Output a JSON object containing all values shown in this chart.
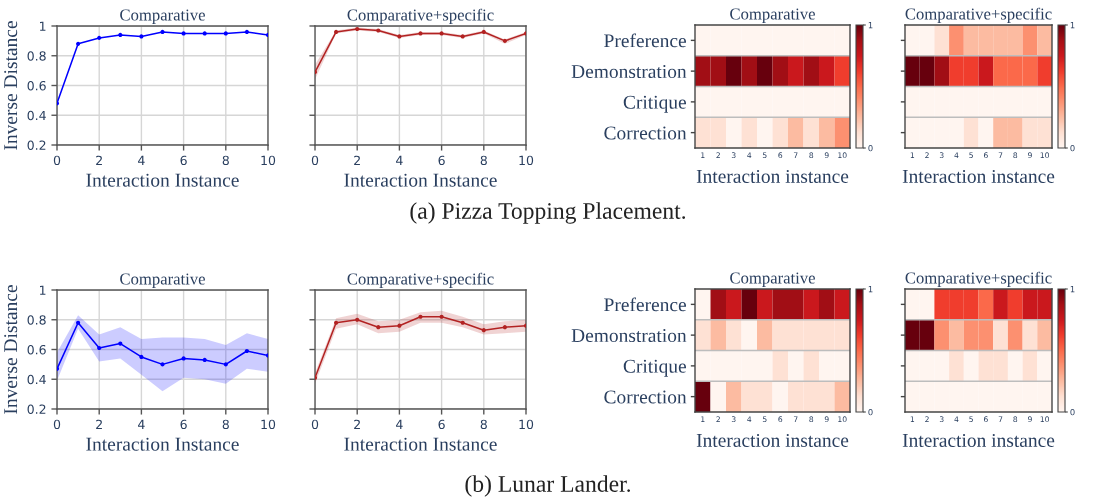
{
  "chart_data": [
    {
      "type": "line",
      "title": "Comparative",
      "xlabel": "Interaction Instance",
      "ylabel": "Inverse Distance",
      "x": [
        0,
        1,
        2,
        3,
        4,
        5,
        6,
        7,
        8,
        9,
        10
      ],
      "series": [
        {
          "color": "#0000ff",
          "values": [
            0.48,
            0.88,
            0.92,
            0.94,
            0.93,
            0.96,
            0.95,
            0.95,
            0.95,
            0.96,
            0.94
          ]
        }
      ],
      "xlim": [
        0,
        10
      ],
      "ylim": [
        0.2,
        1
      ],
      "xticks": [
        0,
        2,
        4,
        6,
        8,
        10
      ],
      "yticks": [
        0.2,
        0.4,
        0.6,
        0.8,
        1
      ],
      "grid": true,
      "marker": "circle",
      "line_style": "solid",
      "annotations": [
        "(a) Pizza Topping Placement."
      ]
    },
    {
      "type": "line",
      "title": "Comparative+specific",
      "xlabel": "Interaction Instance",
      "x": [
        0,
        1,
        2,
        3,
        4,
        5,
        6,
        7,
        8,
        9,
        10
      ],
      "series": [
        {
          "color": "#b22222",
          "values": [
            0.69,
            0.96,
            0.98,
            0.97,
            0.93,
            0.95,
            0.95,
            0.93,
            0.96,
            0.9,
            0.95
          ],
          "lower": [
            0.64,
            0.95,
            0.97,
            0.96,
            0.92,
            0.94,
            0.94,
            0.92,
            0.95,
            0.88,
            0.94
          ],
          "upper": [
            0.74,
            0.97,
            0.99,
            0.98,
            0.94,
            0.96,
            0.96,
            0.94,
            0.97,
            0.91,
            0.96
          ]
        }
      ],
      "xlim": [
        0,
        10
      ],
      "ylim": [
        0.2,
        1
      ],
      "xticks": [
        0,
        2,
        4,
        6,
        8,
        10
      ],
      "yticks": [
        0.2,
        0.4,
        0.6,
        0.8,
        1
      ],
      "tick_labels": "x",
      "grid": true,
      "marker": "circle",
      "line_style": "solid"
    },
    {
      "type": "heatmap",
      "title": "Comparative",
      "xlabel": "Interaction instance",
      "categories": [
        "1",
        "2",
        "3",
        "4",
        "5",
        "6",
        "7",
        "8",
        "9",
        "10"
      ],
      "y_categories": [
        "Preference",
        "Demonstration",
        "Critique",
        "Correction"
      ],
      "clim": [
        0,
        1
      ],
      "cticks": [
        0,
        1
      ],
      "grid": true,
      "cells": [
        [
          0,
          0,
          0,
          0,
          0,
          0,
          0,
          0,
          0,
          0
        ],
        [
          0.88,
          0.88,
          1,
          0.88,
          1,
          0.88,
          0.75,
          0.88,
          0.75,
          0.62
        ],
        [
          0,
          0,
          0,
          0,
          0,
          0,
          0,
          0,
          0,
          0
        ],
        [
          0.12,
          0.12,
          0,
          0.12,
          0,
          0.12,
          0.25,
          0.12,
          0.25,
          0.38
        ]
      ]
    },
    {
      "type": "heatmap",
      "title": "Comparative+specific",
      "xlabel": "Interaction instance",
      "categories": [
        "1",
        "2",
        "3",
        "4",
        "5",
        "6",
        "7",
        "8",
        "9",
        "10"
      ],
      "y_categories": [
        null,
        null,
        null,
        null
      ],
      "clim": [
        0,
        1
      ],
      "cticks": [
        0,
        1
      ],
      "grid": true,
      "cells": [
        [
          0,
          0,
          0.12,
          0.38,
          0.25,
          0.25,
          0.25,
          0.25,
          0.38,
          0.25
        ],
        [
          1,
          1,
          0.88,
          0.62,
          0.62,
          0.75,
          0.5,
          0.5,
          0.5,
          0.62
        ],
        [
          0,
          0,
          0,
          0,
          0,
          0,
          0,
          0,
          0,
          0
        ],
        [
          0,
          0,
          0,
          0,
          0.12,
          0,
          0.25,
          0.25,
          0.12,
          0.12
        ]
      ]
    },
    {
      "type": "line",
      "title": "Comparative",
      "xlabel": "Interaction Instance",
      "ylabel": "Inverse Distance",
      "x": [
        0,
        1,
        2,
        3,
        4,
        5,
        6,
        7,
        8,
        9,
        10
      ],
      "series": [
        {
          "color": "#0000ff",
          "values": [
            0.47,
            0.78,
            0.61,
            0.64,
            0.55,
            0.5,
            0.54,
            0.53,
            0.5,
            0.59,
            0.56
          ],
          "lower": [
            0.39,
            0.74,
            0.52,
            0.54,
            0.43,
            0.32,
            0.41,
            0.4,
            0.37,
            0.47,
            0.45
          ],
          "upper": [
            0.58,
            0.83,
            0.7,
            0.75,
            0.67,
            0.68,
            0.68,
            0.67,
            0.63,
            0.71,
            0.67
          ]
        }
      ],
      "xlim": [
        0,
        10
      ],
      "ylim": [
        0.2,
        1
      ],
      "xticks": [
        0,
        2,
        4,
        6,
        8,
        10
      ],
      "yticks": [
        0.2,
        0.4,
        0.6,
        0.8,
        1
      ],
      "grid": true,
      "marker": "circle",
      "line_style": "solid",
      "annotations": [
        "(b) Lunar Lander."
      ]
    },
    {
      "type": "line",
      "title": "Comparative+specific",
      "xlabel": "Interaction Instance",
      "x": [
        0,
        1,
        2,
        3,
        4,
        5,
        6,
        7,
        8,
        9,
        10
      ],
      "series": [
        {
          "color": "#b22222",
          "values": [
            0.41,
            0.78,
            0.8,
            0.75,
            0.76,
            0.82,
            0.82,
            0.78,
            0.73,
            0.75,
            0.76
          ],
          "lower": [
            0.37,
            0.74,
            0.77,
            0.71,
            0.72,
            0.78,
            0.78,
            0.75,
            0.7,
            0.71,
            0.72
          ],
          "upper": [
            0.44,
            0.81,
            0.84,
            0.79,
            0.8,
            0.85,
            0.86,
            0.82,
            0.77,
            0.79,
            0.8
          ]
        }
      ],
      "xlim": [
        0,
        10
      ],
      "ylim": [
        0.2,
        1
      ],
      "xticks": [
        0,
        2,
        4,
        6,
        8,
        10
      ],
      "yticks": [
        0.2,
        0.4,
        0.6,
        0.8,
        1
      ],
      "tick_labels": "x",
      "grid": true,
      "marker": "circle",
      "line_style": "solid"
    },
    {
      "type": "heatmap",
      "title": "Comparative",
      "xlabel": "Interaction instance",
      "categories": [
        "1",
        "2",
        "3",
        "4",
        "5",
        "6",
        "7",
        "8",
        "9",
        "10"
      ],
      "y_categories": [
        "Preference",
        "Demonstration",
        "Critique",
        "Correction"
      ],
      "clim": [
        0,
        1
      ],
      "cticks": [
        0,
        1
      ],
      "grid": true,
      "cells": [
        [
          0,
          0.88,
          0.75,
          1,
          0.75,
          0.88,
          0.88,
          0.75,
          0.88,
          0.75
        ],
        [
          0.12,
          0.25,
          0.12,
          0,
          0.25,
          0.12,
          0.12,
          0.12,
          0.12,
          0.12
        ],
        [
          0,
          0,
          0,
          0,
          0,
          0.12,
          0,
          0.12,
          0,
          0
        ],
        [
          1,
          0,
          0.25,
          0.12,
          0.12,
          0,
          0.12,
          0.12,
          0.12,
          0.25
        ]
      ]
    },
    {
      "type": "heatmap",
      "title": "Comparative+specific",
      "xlabel": "Interaction instance",
      "categories": [
        "1",
        "2",
        "3",
        "4",
        "5",
        "6",
        "7",
        "8",
        "9",
        "10"
      ],
      "y_categories": [
        null,
        null,
        null,
        null
      ],
      "clim": [
        0,
        1
      ],
      "cticks": [
        0,
        1
      ],
      "grid": true,
      "cells": [
        [
          0,
          0,
          0.62,
          0.62,
          0.62,
          0.5,
          0.75,
          0.62,
          0.75,
          0.75
        ],
        [
          1,
          1,
          0.38,
          0.25,
          0.38,
          0.38,
          0.12,
          0.38,
          0.12,
          0.25
        ],
        [
          0,
          0,
          0,
          0.12,
          0,
          0.12,
          0.12,
          0,
          0.12,
          0
        ],
        [
          0,
          0,
          0,
          0,
          0,
          0,
          0,
          0,
          0,
          0
        ]
      ]
    }
  ]
}
